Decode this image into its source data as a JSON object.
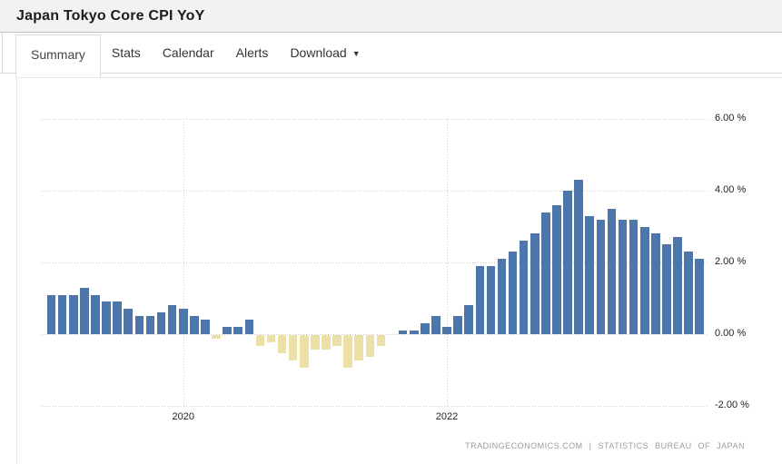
{
  "header": {
    "title": "Japan Tokyo Core CPI YoY"
  },
  "tabs": [
    {
      "label": "Summary",
      "active": true
    },
    {
      "label": "Stats",
      "active": false
    },
    {
      "label": "Calendar",
      "active": false
    },
    {
      "label": "Alerts",
      "active": false
    },
    {
      "label": "Download",
      "active": false,
      "caret_icon": "▼"
    }
  ],
  "chart_data": {
    "type": "bar",
    "title": "Japan Tokyo Core CPI YoY",
    "unit": "%",
    "grid": "dotted",
    "ylim": [
      -2.6,
      6.6
    ],
    "colors": {
      "positive": "#4d76ab",
      "negative": "#ecdfa8"
    },
    "months": [
      "2019-01",
      "2019-02",
      "2019-03",
      "2019-04",
      "2019-05",
      "2019-06",
      "2019-07",
      "2019-08",
      "2019-09",
      "2019-10",
      "2019-11",
      "2019-12",
      "2020-01",
      "2020-02",
      "2020-03",
      "2020-04",
      "2020-05",
      "2020-06",
      "2020-07",
      "2020-08",
      "2020-09",
      "2020-10",
      "2020-11",
      "2020-12",
      "2021-01",
      "2021-02",
      "2021-03",
      "2021-04",
      "2021-05",
      "2021-06",
      "2021-07",
      "2021-08",
      "2021-09",
      "2021-10",
      "2021-11",
      "2021-12",
      "2022-01",
      "2022-02",
      "2022-03",
      "2022-04",
      "2022-05",
      "2022-06",
      "2022-07",
      "2022-08",
      "2022-09",
      "2022-10",
      "2022-11",
      "2022-12",
      "2023-01",
      "2023-02",
      "2023-03",
      "2023-04",
      "2023-05",
      "2023-06",
      "2023-07",
      "2023-08",
      "2023-09",
      "2023-10",
      "2023-11",
      "2023-12"
    ],
    "values": [
      1.1,
      1.1,
      1.1,
      1.3,
      1.1,
      0.9,
      0.9,
      0.7,
      0.5,
      0.5,
      0.6,
      0.8,
      0.7,
      0.5,
      0.4,
      -0.1,
      0.2,
      0.2,
      0.4,
      -0.3,
      -0.2,
      -0.5,
      -0.7,
      -0.9,
      -0.4,
      -0.4,
      -0.3,
      -0.9,
      -0.7,
      -0.6,
      -0.3,
      0.0,
      0.1,
      0.1,
      0.3,
      0.5,
      0.2,
      0.5,
      0.8,
      1.9,
      1.9,
      2.1,
      2.3,
      2.6,
      2.8,
      3.4,
      3.6,
      4.0,
      4.3,
      3.3,
      3.2,
      3.5,
      3.2,
      3.2,
      3.0,
      2.8,
      2.5,
      2.7,
      2.3,
      2.1
    ],
    "x_ticks": [
      {
        "index": 12,
        "label": "2020"
      },
      {
        "index": 36,
        "label": "2022"
      }
    ],
    "y_ticks": [
      {
        "value": 6,
        "label": "6.00 %"
      },
      {
        "value": 4,
        "label": "4.00 %"
      },
      {
        "value": 2,
        "label": "2.00 %"
      },
      {
        "value": 0,
        "label": "0.00 %"
      },
      {
        "value": -2,
        "label": "-2.00 %"
      }
    ]
  },
  "footer": {
    "attribution": "TRADINGECONOMICS.COM | STATISTICS BUREAU OF JAPAN"
  }
}
